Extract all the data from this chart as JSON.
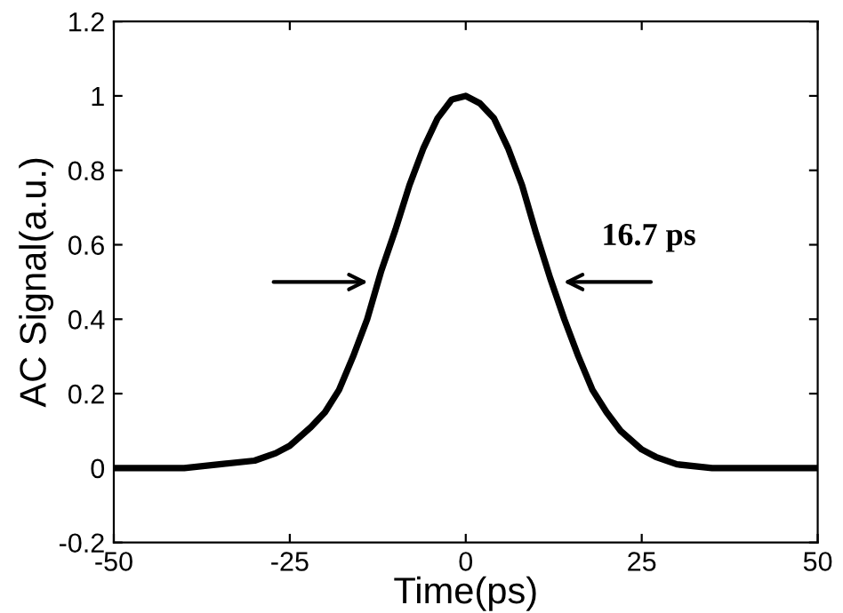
{
  "chart_data": {
    "type": "line",
    "xlabel": "Time(ps)",
    "ylabel": "AC Signal(a.u.)",
    "x": [
      -50,
      -45,
      -40,
      -35,
      -30,
      -27,
      -25,
      -22,
      -20,
      -18,
      -16,
      -14,
      -12,
      -10,
      -8,
      -6,
      -4,
      -2,
      0,
      2,
      4,
      6,
      8,
      10,
      12,
      14,
      16,
      18,
      20,
      22,
      25,
      27,
      30,
      35,
      40,
      45,
      50
    ],
    "series": [
      {
        "color": "#000000",
        "values": [
          0,
          0,
          0,
          0.01,
          0.02,
          0.04,
          0.06,
          0.11,
          0.15,
          0.21,
          0.3,
          0.4,
          0.53,
          0.64,
          0.76,
          0.86,
          0.94,
          0.99,
          1.0,
          0.98,
          0.94,
          0.86,
          0.76,
          0.63,
          0.51,
          0.4,
          0.3,
          0.21,
          0.15,
          0.1,
          0.05,
          0.03,
          0.01,
          0,
          0,
          0,
          0
        ]
      }
    ],
    "annotations": [
      "16.7 ps"
    ],
    "xlim": [
      -50,
      50
    ],
    "ylim": [
      -0.2,
      1.2
    ],
    "xticks": [
      -50,
      -25,
      0,
      25,
      50
    ],
    "yticks": [
      -0.2,
      0,
      0.2,
      0.4,
      0.6,
      0.8,
      1,
      1.2
    ],
    "grid": false,
    "legend": false,
    "marker": "none",
    "line_style": "solid"
  }
}
